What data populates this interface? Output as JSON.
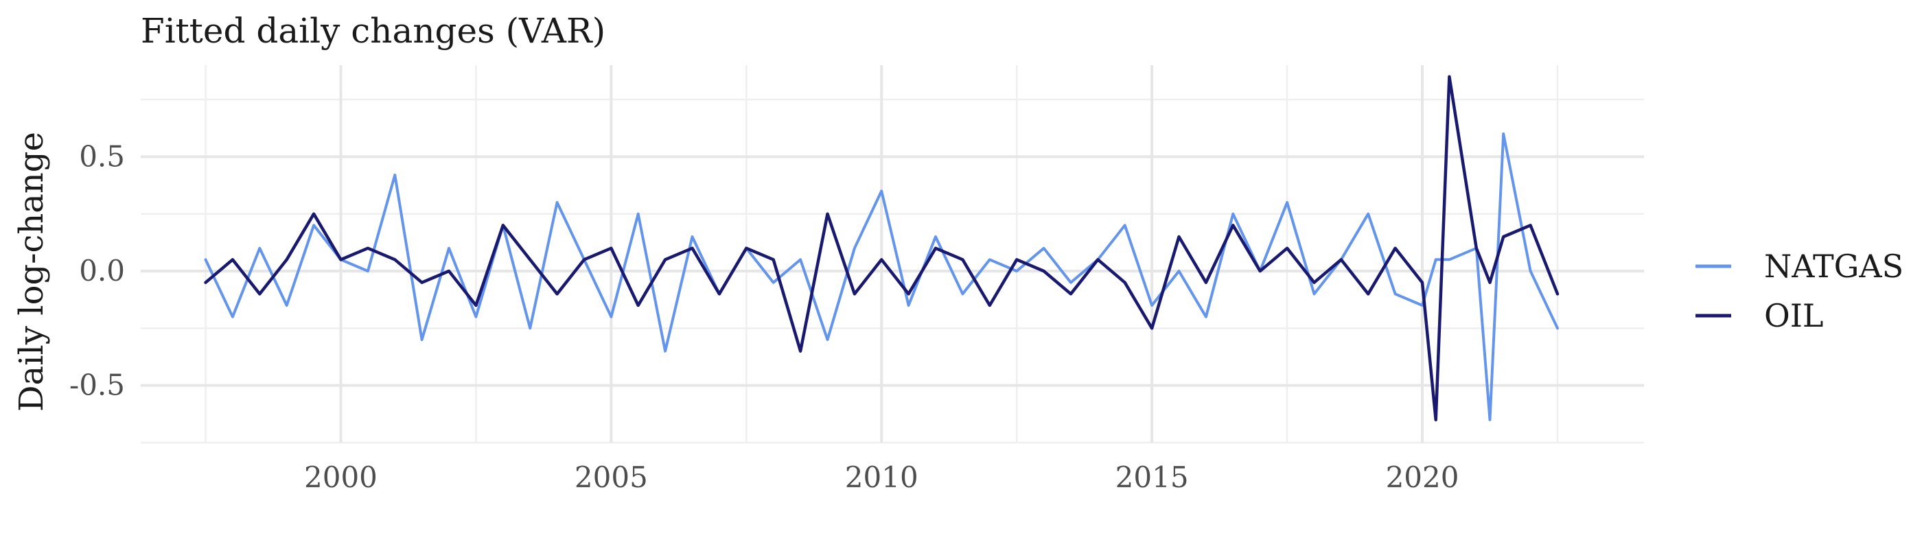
{
  "chart_data": {
    "type": "line",
    "title": "Fitted daily changes (VAR)",
    "xlabel": "",
    "ylabel": "Daily log-change",
    "xlim": [
      1996.3,
      2024.1
    ],
    "ylim": [
      -0.75,
      0.9
    ],
    "x_ticks": [
      2000,
      2005,
      2010,
      2015,
      2020
    ],
    "x_tick_labels": [
      "2000",
      "2005",
      "2010",
      "2015",
      "2020"
    ],
    "y_ticks": [
      0.5,
      0.0,
      -0.5
    ],
    "y_tick_labels": [
      "0.5",
      "0.0",
      "-0.5"
    ],
    "grid": true,
    "legend": {
      "position": "right",
      "entries": [
        "NATGAS",
        "OIL"
      ]
    },
    "colors": {
      "NATGAS": "#6495ED",
      "OIL": "#191970"
    },
    "x": [
      1997.5,
      1998.0,
      1998.5,
      1999.0,
      1999.5,
      2000.0,
      2000.5,
      2001.0,
      2001.5,
      2002.0,
      2002.5,
      2003.0,
      2003.5,
      2004.0,
      2004.5,
      2005.0,
      2005.5,
      2006.0,
      2006.5,
      2007.0,
      2007.5,
      2008.0,
      2008.5,
      2009.0,
      2009.5,
      2010.0,
      2010.5,
      2011.0,
      2011.5,
      2012.0,
      2012.5,
      2013.0,
      2013.5,
      2014.0,
      2014.5,
      2015.0,
      2015.5,
      2016.0,
      2016.5,
      2017.0,
      2017.5,
      2018.0,
      2018.5,
      2019.0,
      2019.5,
      2020.0,
      2020.25,
      2020.5,
      2021.0,
      2021.25,
      2021.5,
      2022.0,
      2022.5
    ],
    "series": [
      {
        "name": "NATGAS",
        "values": [
          0.05,
          -0.2,
          0.1,
          -0.15,
          0.2,
          0.05,
          0.0,
          0.42,
          -0.3,
          0.1,
          -0.2,
          0.2,
          -0.25,
          0.3,
          0.05,
          -0.2,
          0.25,
          -0.35,
          0.15,
          -0.1,
          0.1,
          -0.05,
          0.05,
          -0.3,
          0.1,
          0.35,
          -0.15,
          0.15,
          -0.1,
          0.05,
          0.0,
          0.1,
          -0.05,
          0.05,
          0.2,
          -0.15,
          0.0,
          -0.2,
          0.25,
          0.0,
          0.3,
          -0.1,
          0.05,
          0.25,
          -0.1,
          -0.15,
          0.05,
          0.05,
          0.1,
          -0.65,
          0.6,
          0.0,
          -0.25
        ]
      },
      {
        "name": "OIL",
        "values": [
          -0.05,
          0.05,
          -0.1,
          0.05,
          0.25,
          0.05,
          0.1,
          0.05,
          -0.05,
          0.0,
          -0.15,
          0.2,
          0.05,
          -0.1,
          0.05,
          0.1,
          -0.15,
          0.05,
          0.1,
          -0.1,
          0.1,
          0.05,
          -0.35,
          0.25,
          -0.1,
          0.05,
          -0.1,
          0.1,
          0.05,
          -0.15,
          0.05,
          0.0,
          -0.1,
          0.05,
          -0.05,
          -0.25,
          0.15,
          -0.05,
          0.2,
          0.0,
          0.1,
          -0.05,
          0.05,
          -0.1,
          0.1,
          -0.05,
          -0.65,
          0.85,
          0.1,
          -0.05,
          0.15,
          0.2,
          -0.1
        ]
      }
    ]
  }
}
